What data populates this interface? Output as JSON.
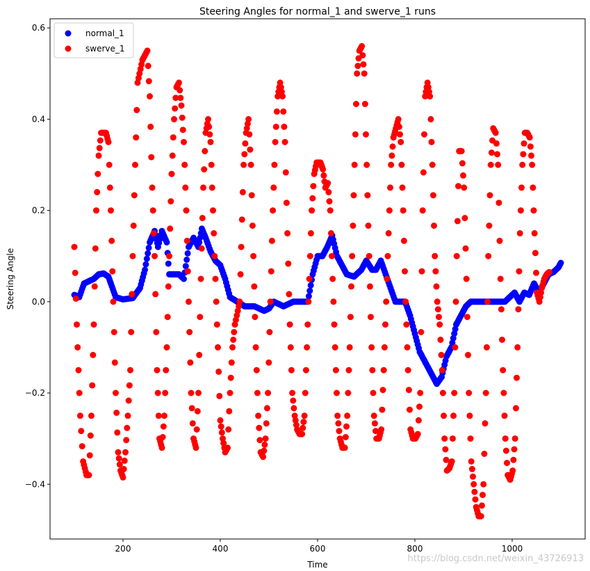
{
  "chart_data": {
    "type": "scatter",
    "title": "Steering Angles for normal_1 and swerve_1 runs",
    "xlabel": "Time",
    "ylabel": "Steering Angle",
    "xlim": [
      50,
      1150
    ],
    "ylim": [
      -0.52,
      0.62
    ],
    "xticks": [
      200,
      400,
      600,
      800,
      1000
    ],
    "yticks": [
      -0.4,
      -0.2,
      0.0,
      0.2,
      0.4,
      0.6
    ],
    "ytick_labels": [
      "−0.4",
      "−0.2",
      "0.0",
      "0.2",
      "0.4",
      "0.6"
    ],
    "grid": false,
    "legend_position": "top-left",
    "series": [
      {
        "name": "normal_1",
        "color": "#0000ff",
        "keypoints": [
          [
            100,
            0.015
          ],
          [
            110,
            0.01
          ],
          [
            120,
            0.04
          ],
          [
            130,
            0.045
          ],
          [
            140,
            0.05
          ],
          [
            150,
            0.06
          ],
          [
            160,
            0.062
          ],
          [
            170,
            0.055
          ],
          [
            175,
            0.04
          ],
          [
            185,
            0.01
          ],
          [
            200,
            0.005
          ],
          [
            220,
            0.008
          ],
          [
            235,
            0.03
          ],
          [
            245,
            0.07
          ],
          [
            255,
            0.13
          ],
          [
            265,
            0.155
          ],
          [
            272,
            0.12
          ],
          [
            280,
            0.155
          ],
          [
            290,
            0.13
          ],
          [
            295,
            0.06
          ],
          [
            305,
            0.06
          ],
          [
            315,
            0.06
          ],
          [
            325,
            0.05
          ],
          [
            335,
            0.12
          ],
          [
            345,
            0.14
          ],
          [
            355,
            0.12
          ],
          [
            362,
            0.16
          ],
          [
            370,
            0.14
          ],
          [
            380,
            0.11
          ],
          [
            390,
            0.09
          ],
          [
            400,
            0.08
          ],
          [
            410,
            0.05
          ],
          [
            420,
            0.01
          ],
          [
            435,
            0.0
          ],
          [
            450,
            -0.01
          ],
          [
            470,
            -0.01
          ],
          [
            490,
            -0.02
          ],
          [
            500,
            -0.015
          ],
          [
            510,
            0.0
          ],
          [
            530,
            -0.01
          ],
          [
            550,
            0.0
          ],
          [
            570,
            0.0
          ],
          [
            580,
            0.0
          ],
          [
            590,
            0.06
          ],
          [
            600,
            0.1
          ],
          [
            610,
            0.1
          ],
          [
            620,
            0.12
          ],
          [
            630,
            0.145
          ],
          [
            640,
            0.1
          ],
          [
            650,
            0.08
          ],
          [
            660,
            0.06
          ],
          [
            675,
            0.055
          ],
          [
            690,
            0.07
          ],
          [
            700,
            0.09
          ],
          [
            712,
            0.07
          ],
          [
            720,
            0.07
          ],
          [
            730,
            0.09
          ],
          [
            740,
            0.06
          ],
          [
            750,
            0.03
          ],
          [
            760,
            0.0
          ],
          [
            780,
            0.0
          ],
          [
            790,
            -0.03
          ],
          [
            800,
            -0.07
          ],
          [
            810,
            -0.11
          ],
          [
            820,
            -0.13
          ],
          [
            835,
            -0.16
          ],
          [
            845,
            -0.18
          ],
          [
            855,
            -0.165
          ],
          [
            865,
            -0.12
          ],
          [
            875,
            -0.1
          ],
          [
            885,
            -0.05
          ],
          [
            895,
            -0.03
          ],
          [
            905,
            -0.01
          ],
          [
            915,
            0.0
          ],
          [
            930,
            0.0
          ],
          [
            950,
            0.0
          ],
          [
            970,
            0.0
          ],
          [
            985,
            0.0
          ],
          [
            995,
            0.01
          ],
          [
            1005,
            0.02
          ],
          [
            1015,
            0.0
          ],
          [
            1025,
            0.02
          ],
          [
            1035,
            0.015
          ],
          [
            1045,
            0.04
          ],
          [
            1055,
            0.02
          ],
          [
            1065,
            0.04
          ],
          [
            1075,
            0.06
          ],
          [
            1085,
            0.065
          ],
          [
            1095,
            0.075
          ],
          [
            1100,
            0.085
          ]
        ]
      },
      {
        "name": "swerve_1",
        "color": "#ff0000",
        "keypoints": [
          [
            100,
            0.12
          ],
          [
            105,
            -0.05
          ],
          [
            112,
            -0.25
          ],
          [
            118,
            -0.35
          ],
          [
            125,
            -0.38
          ],
          [
            130,
            -0.38
          ],
          [
            135,
            -0.25
          ],
          [
            140,
            -0.05
          ],
          [
            145,
            0.2
          ],
          [
            150,
            0.32
          ],
          [
            155,
            0.37
          ],
          [
            160,
            0.37
          ],
          [
            165,
            0.37
          ],
          [
            170,
            0.35
          ],
          [
            175,
            0.2
          ],
          [
            180,
            0.0
          ],
          [
            185,
            -0.2
          ],
          [
            190,
            -0.33
          ],
          [
            195,
            -0.37
          ],
          [
            200,
            -0.385
          ],
          [
            205,
            -0.33
          ],
          [
            210,
            -0.25
          ],
          [
            215,
            -0.15
          ],
          [
            220,
            0.1
          ],
          [
            225,
            0.3
          ],
          [
            230,
            0.48
          ],
          [
            240,
            0.53
          ],
          [
            250,
            0.55
          ],
          [
            255,
            0.45
          ],
          [
            260,
            0.25
          ],
          [
            265,
            0.1
          ],
          [
            270,
            -0.15
          ],
          [
            275,
            -0.3
          ],
          [
            280,
            -0.32
          ],
          [
            285,
            -0.25
          ],
          [
            290,
            -0.1
          ],
          [
            295,
            0.1
          ],
          [
            300,
            0.28
          ],
          [
            305,
            0.4
          ],
          [
            310,
            0.47
          ],
          [
            315,
            0.48
          ],
          [
            320,
            0.43
          ],
          [
            325,
            0.35
          ],
          [
            330,
            0.2
          ],
          [
            335,
            0.0
          ],
          [
            340,
            -0.2
          ],
          [
            345,
            -0.3
          ],
          [
            350,
            -0.32
          ],
          [
            355,
            -0.2
          ],
          [
            360,
            0.05
          ],
          [
            365,
            0.25
          ],
          [
            370,
            0.37
          ],
          [
            375,
            0.4
          ],
          [
            380,
            0.35
          ],
          [
            385,
            0.2
          ],
          [
            390,
            0.05
          ],
          [
            395,
            -0.1
          ],
          [
            400,
            -0.26
          ],
          [
            405,
            -0.3
          ],
          [
            410,
            -0.33
          ],
          [
            415,
            -0.32
          ],
          [
            420,
            -0.2
          ],
          [
            425,
            -0.1
          ],
          [
            430,
            -0.05
          ],
          [
            440,
            0.0
          ],
          [
            443,
            0.12
          ],
          [
            448,
            0.3
          ],
          [
            453,
            0.37
          ],
          [
            458,
            0.4
          ],
          [
            463,
            0.3
          ],
          [
            468,
            0.1
          ],
          [
            473,
            -0.1
          ],
          [
            478,
            -0.25
          ],
          [
            483,
            -0.33
          ],
          [
            488,
            -0.34
          ],
          [
            493,
            -0.3
          ],
          [
            498,
            -0.2
          ],
          [
            503,
            0.0
          ],
          [
            508,
            0.2
          ],
          [
            513,
            0.35
          ],
          [
            518,
            0.45
          ],
          [
            523,
            0.48
          ],
          [
            528,
            0.45
          ],
          [
            533,
            0.35
          ],
          [
            538,
            0.15
          ],
          [
            543,
            -0.05
          ],
          [
            548,
            -0.2
          ],
          [
            553,
            -0.25
          ],
          [
            558,
            -0.28
          ],
          [
            563,
            -0.29
          ],
          [
            568,
            -0.29
          ],
          [
            573,
            -0.25
          ],
          [
            578,
            -0.1
          ],
          [
            583,
            0.05
          ],
          [
            588,
            0.2
          ],
          [
            593,
            0.28
          ],
          [
            598,
            0.305
          ],
          [
            606,
            0.305
          ],
          [
            611,
            0.29
          ],
          [
            616,
            0.25
          ],
          [
            621,
            0.26
          ],
          [
            626,
            0.2
          ],
          [
            631,
            0.05
          ],
          [
            636,
            -0.1
          ],
          [
            641,
            -0.25
          ],
          [
            646,
            -0.3
          ],
          [
            651,
            -0.32
          ],
          [
            656,
            -0.32
          ],
          [
            661,
            -0.25
          ],
          [
            666,
            -0.1
          ],
          [
            671,
            0.1
          ],
          [
            676,
            0.3
          ],
          [
            681,
            0.5
          ],
          [
            686,
            0.55
          ],
          [
            691,
            0.56
          ],
          [
            696,
            0.5
          ],
          [
            701,
            0.3
          ],
          [
            706,
            0.1
          ],
          [
            711,
            -0.1
          ],
          [
            716,
            -0.25
          ],
          [
            721,
            -0.3
          ],
          [
            726,
            -0.3
          ],
          [
            731,
            -0.28
          ],
          [
            736,
            -0.15
          ],
          [
            741,
            0.0
          ],
          [
            746,
            0.15
          ],
          [
            751,
            0.3
          ],
          [
            756,
            0.36
          ],
          [
            761,
            0.38
          ],
          [
            766,
            0.4
          ],
          [
            771,
            0.35
          ],
          [
            776,
            0.2
          ],
          [
            781,
            0.0
          ],
          [
            786,
            -0.15
          ],
          [
            791,
            -0.28
          ],
          [
            796,
            -0.3
          ],
          [
            801,
            -0.3
          ],
          [
            806,
            -0.29
          ],
          [
            811,
            -0.2
          ],
          [
            816,
            0.2
          ],
          [
            821,
            0.45
          ],
          [
            826,
            0.48
          ],
          [
            831,
            0.45
          ],
          [
            836,
            0.3
          ],
          [
            841,
            0.1
          ],
          [
            846,
            0.0
          ],
          [
            851,
            -0.05
          ],
          [
            856,
            -0.15
          ],
          [
            861,
            -0.3
          ],
          [
            866,
            -0.37
          ],
          [
            871,
            -0.365
          ],
          [
            876,
            -0.35
          ],
          [
            881,
            -0.2
          ],
          [
            886,
            0.1
          ],
          [
            891,
            0.33
          ],
          [
            896,
            0.33
          ],
          [
            901,
            0.25
          ],
          [
            906,
            0.05
          ],
          [
            911,
            -0.2
          ],
          [
            916,
            -0.35
          ],
          [
            921,
            -0.4
          ],
          [
            926,
            -0.45
          ],
          [
            931,
            -0.47
          ],
          [
            936,
            -0.47
          ],
          [
            941,
            -0.4
          ],
          [
            946,
            -0.2
          ],
          [
            951,
            0.1
          ],
          [
            956,
            0.3
          ],
          [
            961,
            0.38
          ],
          [
            966,
            0.37
          ],
          [
            971,
            0.3
          ],
          [
            976,
            0.05
          ],
          [
            981,
            -0.15
          ],
          [
            986,
            -0.3
          ],
          [
            991,
            -0.38
          ],
          [
            996,
            -0.39
          ],
          [
            1001,
            -0.37
          ],
          [
            1006,
            -0.3
          ],
          [
            1011,
            -0.1
          ],
          [
            1016,
            0.15
          ],
          [
            1021,
            0.3
          ],
          [
            1026,
            0.37
          ],
          [
            1031,
            0.37
          ],
          [
            1036,
            0.36
          ],
          [
            1041,
            0.3
          ],
          [
            1046,
            0.15
          ],
          [
            1051,
            0.02
          ],
          [
            1056,
            0.0
          ],
          [
            1061,
            0.03
          ],
          [
            1066,
            0.05
          ],
          [
            1071,
            0.06
          ],
          [
            1076,
            0.065
          ]
        ]
      }
    ]
  },
  "watermark": "https://blog.csdn.net/weixin_43726913"
}
